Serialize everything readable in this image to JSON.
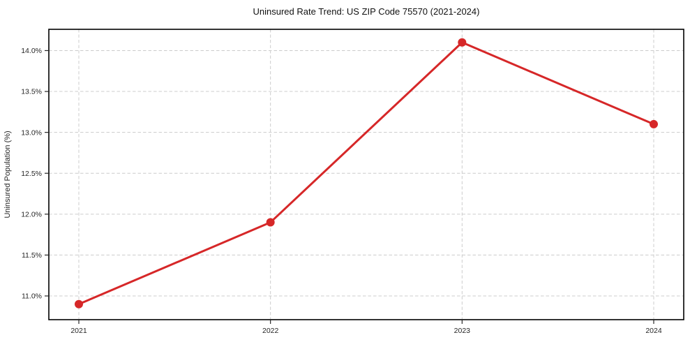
{
  "chart_data": {
    "type": "line",
    "title": "Uninsured Rate Trend: US ZIP Code 75570 (2021-2024)",
    "xlabel": "",
    "ylabel": "Uninsured Population (%)",
    "categories": [
      "2021",
      "2022",
      "2023",
      "2024"
    ],
    "values": [
      10.9,
      11.9,
      14.1,
      13.1
    ],
    "ytick_labels": [
      "11.0%",
      "11.5%",
      "12.0%",
      "12.5%",
      "13.0%",
      "13.5%",
      "14.0%"
    ],
    "yticks": [
      11.0,
      11.5,
      12.0,
      12.5,
      13.0,
      13.5,
      14.0
    ],
    "ylim": [
      10.71,
      14.26
    ],
    "line_color": "#d62728",
    "marker": "circle",
    "grid": "dashed",
    "grid_color": "#cccccc",
    "background": "#ffffff",
    "axis_color": "#000000",
    "legend": "none"
  }
}
